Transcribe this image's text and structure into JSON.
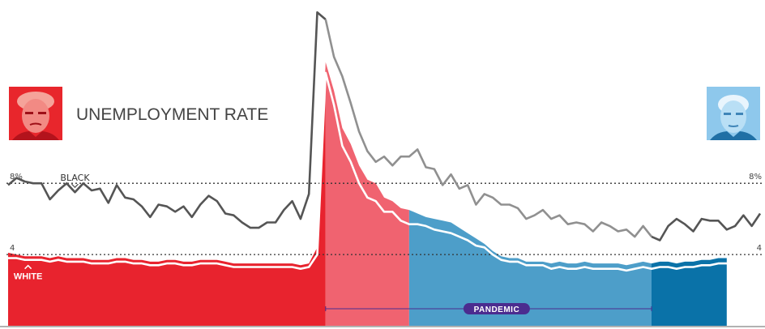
{
  "chart_data": {
    "type": "line",
    "title": "UNEMPLOYMENT RATE",
    "xlabel": "",
    "ylabel": "",
    "ylim": [
      0,
      18.2
    ],
    "y_ticks": [
      {
        "value": 8,
        "label": "8%"
      },
      {
        "value": 4,
        "label": "4"
      }
    ],
    "grid": "dotted lines at 4 and 8",
    "legend": "none",
    "annotations": [
      {
        "text": "BLACK",
        "series": "black",
        "index": 8
      },
      {
        "text": "WHITE",
        "series": "white",
        "index": 2
      },
      {
        "text": "PANDEMIC",
        "start_index": 38,
        "end_index": 77
      }
    ],
    "periods": [
      {
        "start_index": 0,
        "end_index": 38,
        "color": "#e8232e"
      },
      {
        "start_index": 38,
        "end_index": 48,
        "color": "#f06370"
      },
      {
        "start_index": 48,
        "end_index": 77,
        "color": "#4d9ec9"
      },
      {
        "start_index": 77,
        "end_index": 86,
        "color": "#0a72a8"
      }
    ],
    "series": [
      {
        "name": "BLACK",
        "color": "#555555",
        "values": [
          7.9,
          8.3,
          8.1,
          8.0,
          8.0,
          7.1,
          7.6,
          8.0,
          7.5,
          8.0,
          7.6,
          7.7,
          6.9,
          7.9,
          7.2,
          7.1,
          6.7,
          6.1,
          6.8,
          6.7,
          6.4,
          6.7,
          6.1,
          6.8,
          7.3,
          7.0,
          6.3,
          6.2,
          5.8,
          5.5,
          5.5,
          5.8,
          5.8,
          6.5,
          7.0,
          6.0,
          7.4,
          17.6,
          17.2,
          15.1,
          14.0,
          12.5,
          10.9,
          9.8,
          9.2,
          9.5,
          9.0,
          9.5,
          9.5,
          9.9,
          8.9,
          8.8,
          7.9,
          8.5,
          7.7,
          7.9,
          6.8,
          7.4,
          7.2,
          6.8,
          6.8,
          6.6,
          6.0,
          6.2,
          6.5,
          6.0,
          6.2,
          5.7,
          5.8,
          5.7,
          5.3,
          5.8,
          5.6,
          5.3,
          5.4,
          5.0,
          5.6,
          5.0,
          4.8,
          5.6,
          6.0,
          5.7,
          5.3,
          6.0,
          5.9,
          5.9,
          5.4,
          5.6,
          6.2,
          5.6,
          6.3
        ]
      },
      {
        "name": "WHITE",
        "color": "#ffffff",
        "values": [
          3.8,
          3.8,
          3.7,
          3.7,
          3.7,
          3.6,
          3.7,
          3.6,
          3.6,
          3.6,
          3.5,
          3.5,
          3.5,
          3.6,
          3.6,
          3.5,
          3.5,
          3.4,
          3.4,
          3.5,
          3.5,
          3.4,
          3.4,
          3.5,
          3.5,
          3.5,
          3.4,
          3.3,
          3.3,
          3.3,
          3.3,
          3.3,
          3.3,
          3.3,
          3.3,
          3.2,
          3.3,
          4.0,
          14.2,
          12.4,
          10.1,
          9.2,
          8.0,
          7.2,
          7.0,
          6.4,
          6.4,
          5.9,
          5.7,
          5.7,
          5.6,
          5.4,
          5.3,
          5.2,
          5.0,
          4.8,
          4.5,
          4.4,
          4.0,
          3.7,
          3.6,
          3.6,
          3.4,
          3.4,
          3.4,
          3.2,
          3.3,
          3.2,
          3.2,
          3.3,
          3.2,
          3.2,
          3.2,
          3.2,
          3.1,
          3.2,
          3.3,
          3.2,
          3.3,
          3.3,
          3.2,
          3.3,
          3.3,
          3.4,
          3.4,
          3.5,
          3.5,
          3.4,
          3.5,
          3.5,
          3.5
        ]
      },
      {
        "name": "area",
        "color": "#e8232e",
        "values": [
          4.1,
          4.0,
          3.9,
          3.9,
          3.9,
          3.8,
          3.9,
          3.8,
          3.8,
          3.8,
          3.7,
          3.7,
          3.7,
          3.8,
          3.8,
          3.7,
          3.7,
          3.6,
          3.6,
          3.7,
          3.7,
          3.6,
          3.6,
          3.7,
          3.7,
          3.7,
          3.6,
          3.5,
          3.5,
          3.5,
          3.5,
          3.5,
          3.5,
          3.5,
          3.5,
          3.4,
          3.5,
          4.4,
          14.8,
          13.2,
          11.1,
          10.2,
          9.0,
          8.2,
          8.0,
          7.2,
          7.0,
          6.6,
          6.5,
          6.3,
          6.1,
          6.0,
          5.9,
          5.8,
          5.5,
          5.2,
          4.9,
          4.6,
          4.2,
          3.9,
          3.8,
          3.8,
          3.6,
          3.6,
          3.6,
          3.5,
          3.6,
          3.5,
          3.5,
          3.6,
          3.5,
          3.5,
          3.5,
          3.5,
          3.4,
          3.5,
          3.6,
          3.5,
          3.6,
          3.6,
          3.5,
          3.6,
          3.6,
          3.7,
          3.7,
          3.8,
          3.8,
          3.7,
          3.8,
          3.8,
          3.8
        ]
      }
    ]
  }
}
